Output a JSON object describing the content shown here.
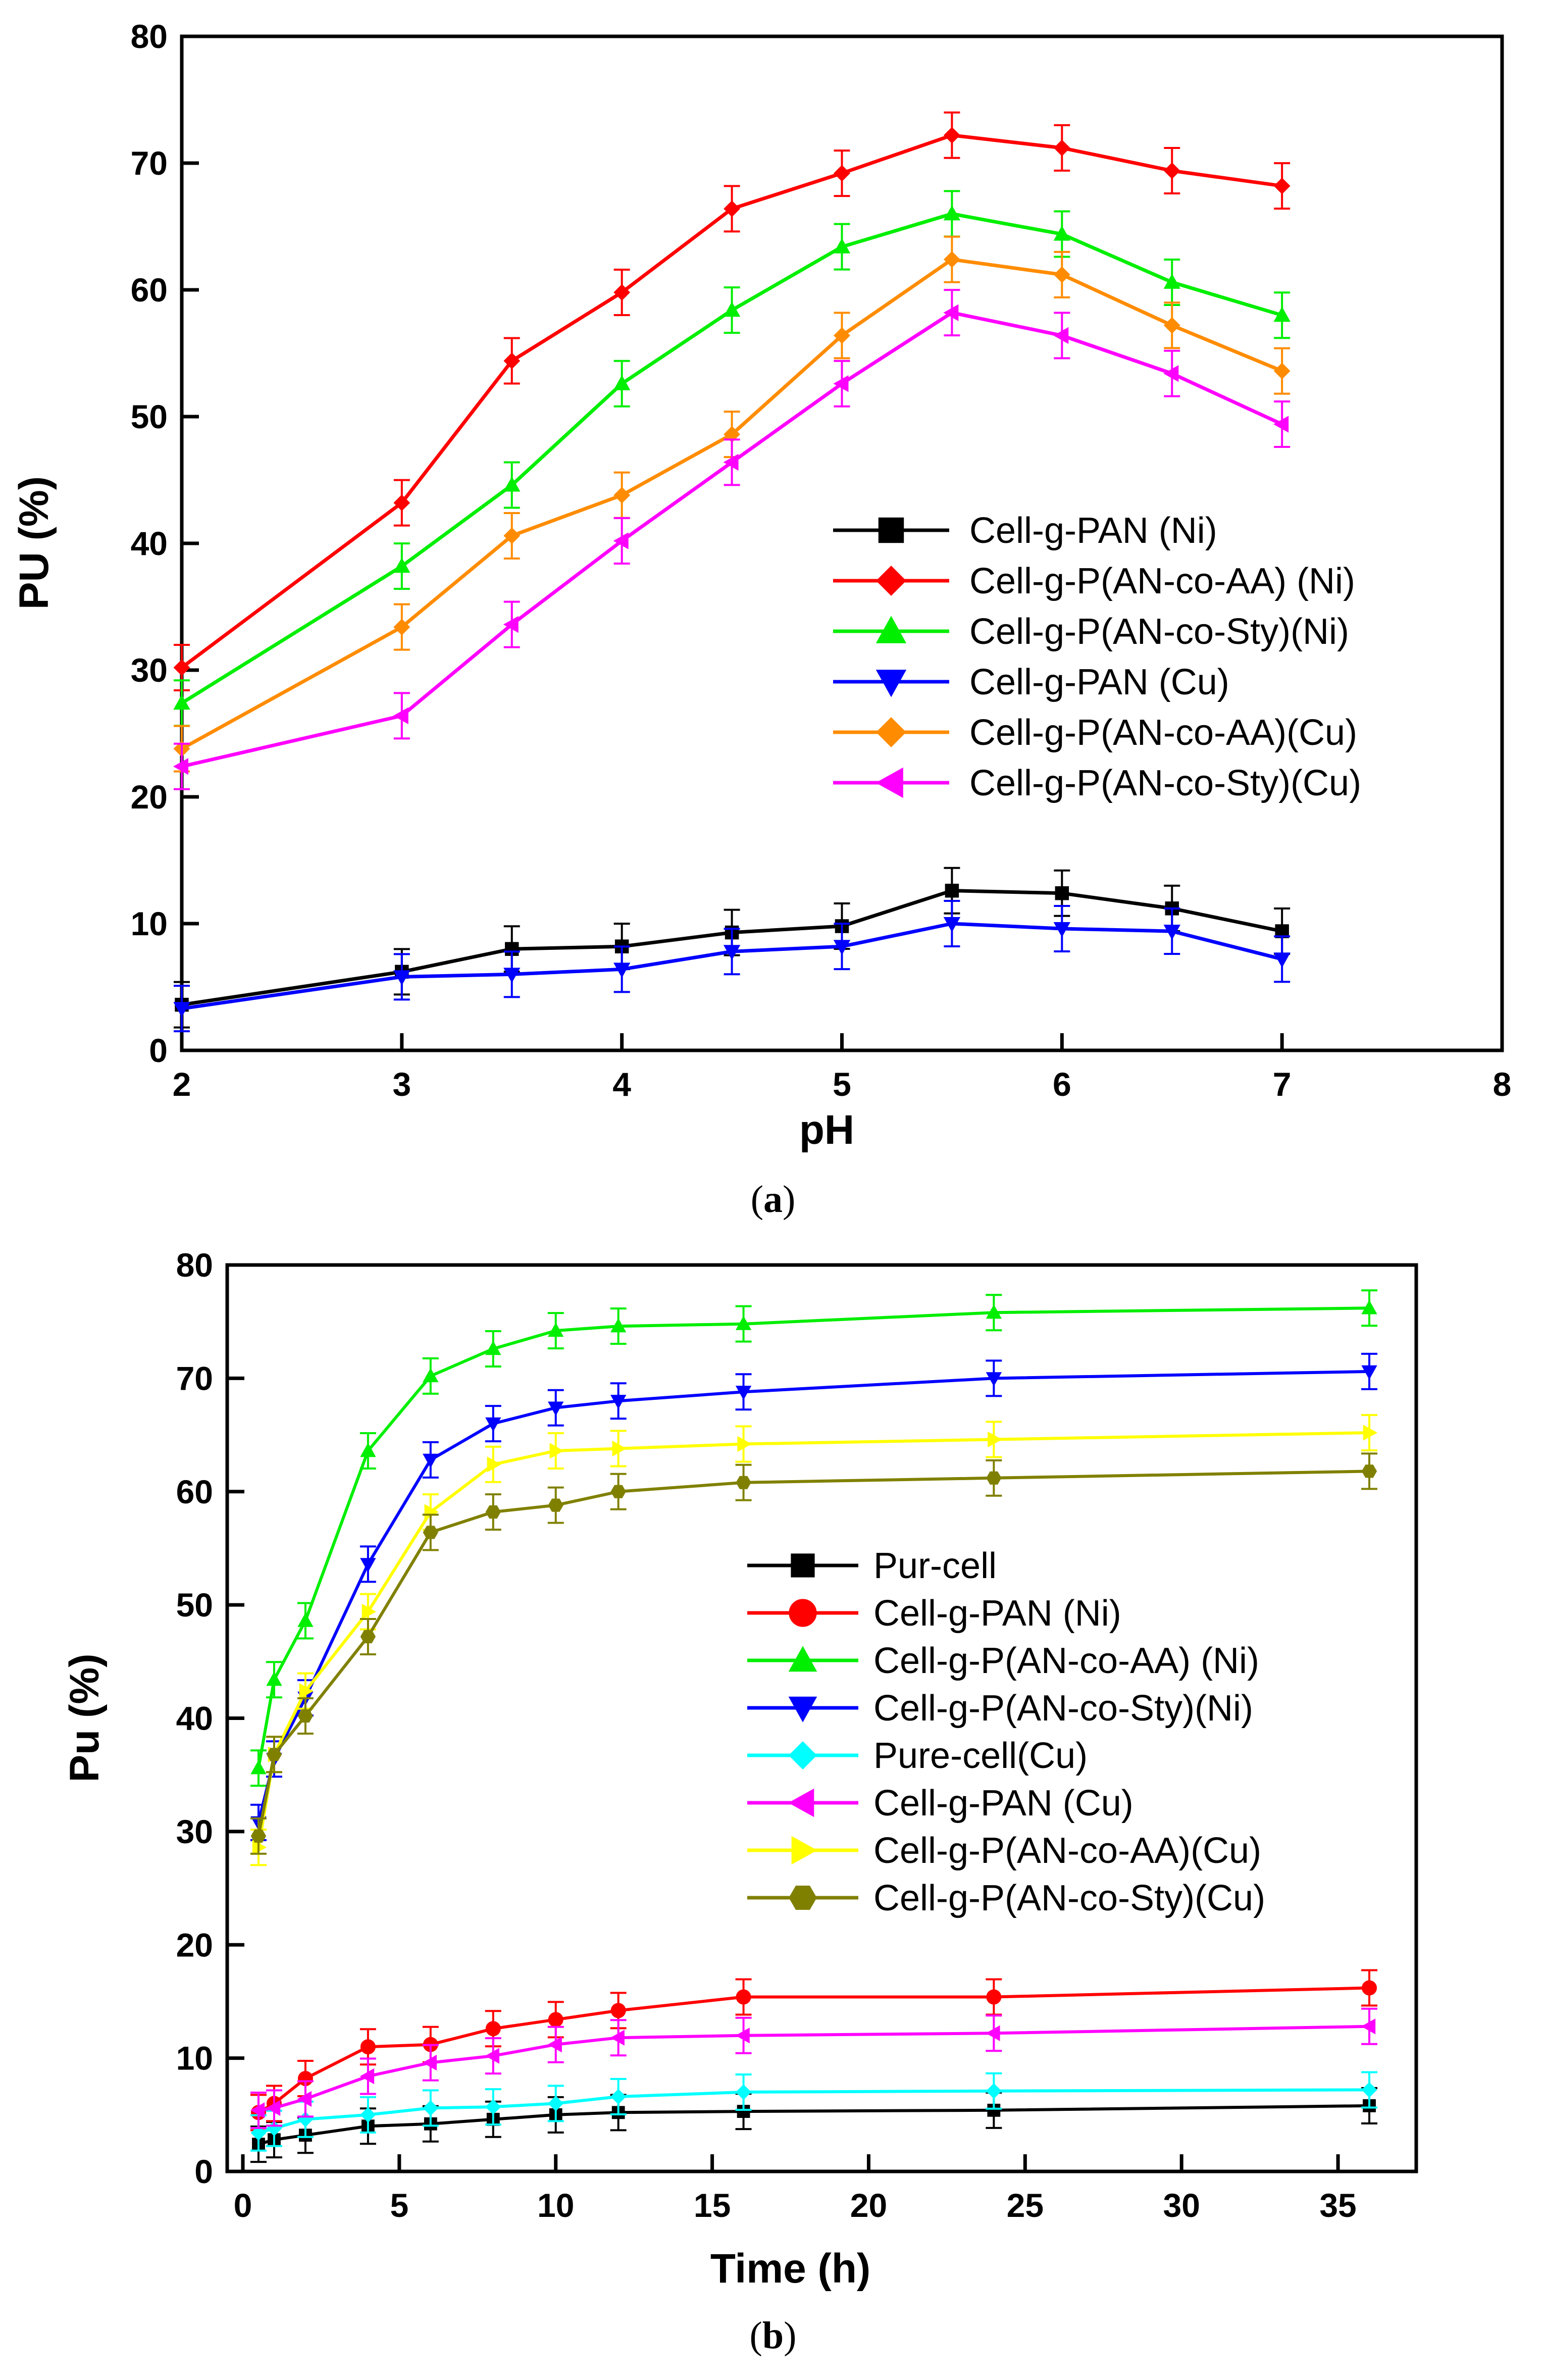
{
  "colors": {
    "black": "#000000",
    "red": "#ff0000",
    "green": "#00ee00",
    "blue": "#0000ff",
    "orange": "#ff8c00",
    "magenta": "#ff00ff",
    "cyan": "#00ffff",
    "yellow": "#ffff00",
    "olive": "#808000"
  },
  "chart_data": [
    {
      "id": "a",
      "type": "line",
      "caption": "a",
      "xlabel": "pH",
      "ylabel": "PU (%)",
      "xlim": [
        2,
        8
      ],
      "ylim": [
        0,
        80
      ],
      "xticks": [
        2,
        3,
        4,
        5,
        6,
        7,
        8
      ],
      "yticks": [
        0,
        10,
        20,
        30,
        40,
        50,
        60,
        70,
        80
      ],
      "x": [
        2,
        3,
        3.5,
        4,
        4.5,
        5,
        5.5,
        6,
        6.5,
        7
      ],
      "legend_position": "center-right",
      "series": [
        {
          "name": "Cell-g-PAN (Ni)",
          "color": "black",
          "marker": "square",
          "values": [
            3.6,
            6.2,
            8.0,
            8.2,
            9.3,
            9.8,
            12.6,
            12.4,
            11.2,
            9.4
          ]
        },
        {
          "name": "Cell-g-P(AN-co-AA) (Ni)",
          "color": "red",
          "marker": "diamond",
          "values": [
            30.2,
            43.2,
            54.4,
            59.8,
            66.4,
            69.2,
            72.2,
            71.2,
            69.4,
            68.2
          ]
        },
        {
          "name": "Cell-g-P(AN-co-Sty)(Ni)",
          "color": "green",
          "marker": "triangle-up",
          "values": [
            27.4,
            38.2,
            44.6,
            52.6,
            58.4,
            63.4,
            66.0,
            64.4,
            60.6,
            58.0
          ]
        },
        {
          "name": "Cell-g-PAN (Cu)",
          "color": "blue",
          "marker": "triangle-down",
          "values": [
            3.3,
            5.8,
            6.0,
            6.4,
            7.8,
            8.2,
            10.0,
            9.6,
            9.4,
            7.2
          ]
        },
        {
          "name": "Cell-g-P(AN-co-AA)(Cu)",
          "color": "orange",
          "marker": "diamond",
          "values": [
            23.8,
            33.4,
            40.6,
            43.8,
            48.6,
            56.4,
            62.4,
            61.2,
            57.2,
            53.6
          ]
        },
        {
          "name": "Cell-g-P(AN-co-Sty)(Cu)",
          "color": "magenta",
          "marker": "triangle-left",
          "values": [
            22.4,
            26.4,
            33.6,
            40.2,
            46.4,
            52.6,
            58.2,
            56.4,
            53.4,
            49.4
          ]
        }
      ]
    },
    {
      "id": "b",
      "type": "line",
      "caption": "b",
      "xlabel": "Time (h)",
      "ylabel": "Pu (%)",
      "xlim": [
        -0.5,
        37.5
      ],
      "ylim": [
        0,
        80
      ],
      "xticks": [
        0,
        5,
        10,
        15,
        20,
        25,
        30,
        35
      ],
      "yticks": [
        0,
        10,
        20,
        30,
        40,
        50,
        60,
        70,
        80
      ],
      "x": [
        0.5,
        1,
        2,
        4,
        6,
        8,
        10,
        12,
        16,
        24,
        36
      ],
      "legend_position": "center",
      "series": [
        {
          "name": "Pur-cell",
          "color": "black",
          "marker": "square",
          "values": [
            2.4,
            2.8,
            3.2,
            4.0,
            4.2,
            4.6,
            5.0,
            5.2,
            5.3,
            5.4,
            5.8
          ]
        },
        {
          "name": "Cell-g-PAN (Ni)",
          "color": "red",
          "marker": "circle",
          "values": [
            5.2,
            6.0,
            8.2,
            11.0,
            11.2,
            12.6,
            13.4,
            14.2,
            15.4,
            15.4,
            16.2
          ]
        },
        {
          "name": "Cell-g-P(AN-co-AA) (Ni)",
          "color": "green",
          "marker": "triangle-up",
          "values": [
            35.6,
            43.4,
            48.6,
            63.6,
            70.2,
            72.6,
            74.2,
            74.6,
            74.8,
            75.8,
            76.2
          ]
        },
        {
          "name": "Cell-g-P(AN-co-Sty)(Ni)",
          "color": "blue",
          "marker": "triangle-down",
          "values": [
            30.8,
            36.4,
            41.8,
            53.6,
            62.8,
            66.0,
            67.4,
            68.0,
            68.8,
            70.0,
            70.6
          ]
        },
        {
          "name": "Pure-cell(Cu)",
          "color": "cyan",
          "marker": "diamond",
          "values": [
            3.4,
            3.8,
            4.6,
            5.0,
            5.6,
            5.7,
            6.0,
            6.6,
            7.0,
            7.1,
            7.2
          ]
        },
        {
          "name": "Cell-g-PAN (Cu)",
          "color": "magenta",
          "marker": "triangle-left",
          "values": [
            5.4,
            5.6,
            6.4,
            8.4,
            9.6,
            10.2,
            11.2,
            11.8,
            12.0,
            12.2,
            12.8
          ]
        },
        {
          "name": "Cell-g-P(AN-co-AA)(Cu)",
          "color": "yellow",
          "marker": "triangle-right",
          "values": [
            28.6,
            36.8,
            42.4,
            49.4,
            58.2,
            62.4,
            63.6,
            63.8,
            64.2,
            64.6,
            65.2
          ]
        },
        {
          "name": "Cell-g-P(AN-co-Sty)(Cu)",
          "color": "olive",
          "marker": "hexagon",
          "values": [
            29.6,
            36.8,
            40.2,
            47.2,
            56.4,
            58.2,
            58.8,
            60.0,
            60.8,
            61.2,
            61.8
          ]
        }
      ]
    }
  ]
}
